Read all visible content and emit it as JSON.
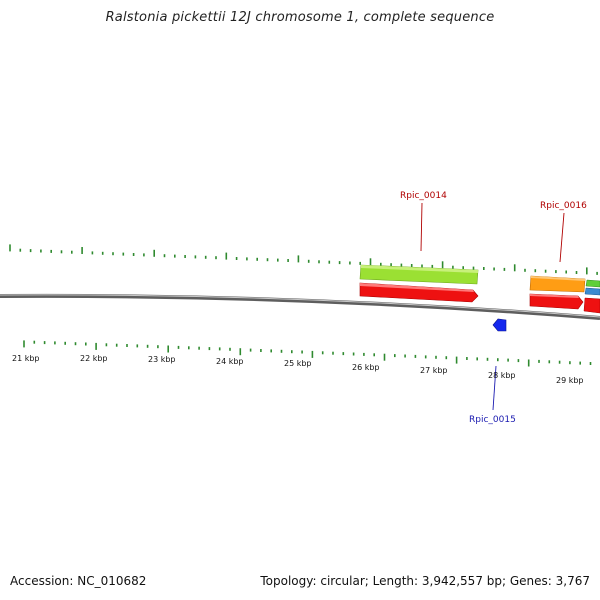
{
  "title": "Ralstonia pickettii 12J chromosome 1, complete sequence",
  "footer": {
    "accession": "Accession: NC_010682",
    "summary": "Topology: circular; Length: 3,942,557 bp; Genes: 3,767"
  },
  "colors": {
    "tick": "#2f8a2f",
    "backbone": "#7a7a7a",
    "label_forward": "#b00000",
    "label_reverse": "#1a1ab0"
  },
  "scale": {
    "labels": [
      "21 kbp",
      "22 kbp",
      "23 kbp",
      "24 kbp",
      "25 kbp",
      "26 kbp",
      "27 kbp",
      "28 kbp",
      "29 kbp"
    ]
  },
  "gene_labels": {
    "rpic_0014": "Rpic_0014",
    "rpic_0015": "Rpic_0015",
    "rpic_0016": "Rpic_0016"
  }
}
